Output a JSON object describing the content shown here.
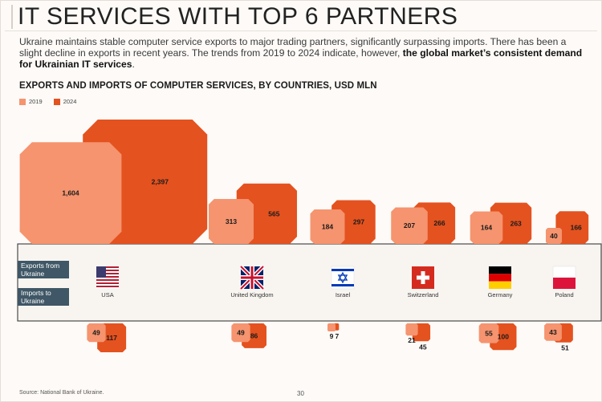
{
  "header": {
    "title": "IT SERVICES WITH TOP 6 PARTNERS",
    "intro_plain": "Ukraine maintains stable computer service exports to major trading partners, significantly surpassing imports. There has been a slight decline in exports in recent years. The trends from 2019 to 2024 indicate, however, ",
    "intro_bold": "the global market’s consistent demand for Ukrainian IT services",
    "intro_end": "."
  },
  "labels": {
    "exports": "Exports from Ukraine",
    "imports": "Imports to Ukraine"
  },
  "colors": {
    "y2019": "#f5946f",
    "y2024": "#e4521f",
    "band_border": "#4a4a4a",
    "label_bg": "#3f5766"
  },
  "footer": {
    "source": "Source: National Bank of Ukraine.",
    "page": "30"
  },
  "chart_data": {
    "type": "bar",
    "title": "EXPORTS AND IMPORTS OF COMPUTER SERVICES, BY COUNTRIES, USD MLN",
    "legend": [
      "2019",
      "2024"
    ],
    "categories": [
      "USA",
      "United Kingdom",
      "Israel",
      "Switzerland",
      "Germany",
      "Poland"
    ],
    "flags": [
      "usa-flag-icon",
      "uk-flag-icon",
      "israel-flag-icon",
      "switzerland-flag-icon",
      "germany-flag-icon",
      "poland-flag-icon"
    ],
    "exports": [
      {
        "year": "2019",
        "values": [
          1604,
          313,
          184,
          207,
          164,
          40
        ],
        "labels": [
          "1,604",
          "313",
          "184",
          "207",
          "164",
          "40"
        ]
      },
      {
        "year": "2024",
        "values": [
          2397,
          565,
          297,
          266,
          263,
          166
        ],
        "labels": [
          "2,397",
          "565",
          "297",
          "266",
          "263",
          "166"
        ]
      }
    ],
    "imports": [
      {
        "year": "2019",
        "values": [
          49,
          49,
          9,
          21,
          55,
          43
        ],
        "labels": [
          "49",
          "49",
          "9",
          "21",
          "55",
          "43"
        ]
      },
      {
        "year": "2024",
        "values": [
          117,
          86,
          7,
          45,
          100,
          51
        ],
        "labels": [
          "117",
          "86",
          "7",
          "45",
          "100",
          "51"
        ]
      }
    ]
  }
}
